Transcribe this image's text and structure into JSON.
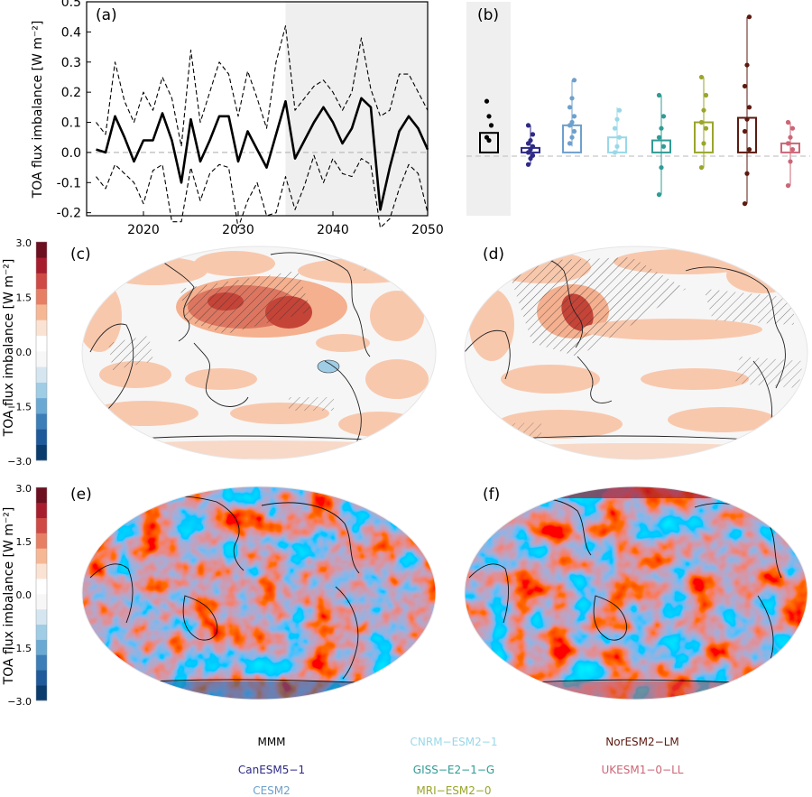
{
  "figure": {
    "ylabel": "TOA flux imbalance [W m⁻²]",
    "panel_labels": [
      "(a)",
      "(b)",
      "(c)",
      "(d)",
      "(e)",
      "(f)"
    ]
  },
  "chart_data": [
    {
      "id": "a",
      "type": "line",
      "title": "(a)",
      "xlabel": "",
      "ylabel": "TOA flux imbalance [W m⁻²]",
      "xlim": [
        2014,
        2050
      ],
      "ylim": [
        -0.21,
        0.5
      ],
      "xticks": [
        2020,
        2030,
        2040,
        2050
      ],
      "yticks": [
        -0.2,
        -0.1,
        0.0,
        0.1,
        0.2,
        0.3,
        0.4,
        0.5
      ],
      "shaded_x_range": [
        2035,
        2050
      ],
      "x": [
        2015,
        2016,
        2017,
        2018,
        2019,
        2020,
        2021,
        2022,
        2023,
        2024,
        2025,
        2026,
        2027,
        2028,
        2029,
        2030,
        2031,
        2032,
        2033,
        2034,
        2035,
        2036,
        2037,
        2038,
        2039,
        2040,
        2041,
        2042,
        2043,
        2044,
        2045,
        2046,
        2047,
        2048,
        2049,
        2050
      ],
      "series": [
        {
          "name": "mean",
          "style": "solid",
          "values": [
            0.01,
            0.0,
            0.12,
            0.05,
            -0.03,
            0.04,
            0.04,
            0.13,
            0.04,
            -0.1,
            0.11,
            -0.03,
            0.04,
            0.12,
            0.12,
            -0.03,
            0.07,
            0.01,
            -0.05,
            0.06,
            0.17,
            -0.02,
            0.04,
            0.1,
            0.15,
            0.1,
            0.03,
            0.08,
            0.18,
            0.15,
            -0.19,
            -0.05,
            0.07,
            0.12,
            0.08,
            0.01
          ]
        },
        {
          "name": "upper",
          "style": "dashed",
          "values": [
            0.1,
            0.06,
            0.3,
            0.17,
            0.1,
            0.2,
            0.14,
            0.25,
            0.18,
            0.02,
            0.34,
            0.1,
            0.2,
            0.3,
            0.26,
            0.12,
            0.27,
            0.18,
            0.08,
            0.3,
            0.42,
            0.14,
            0.18,
            0.22,
            0.24,
            0.2,
            0.14,
            0.2,
            0.38,
            0.21,
            0.12,
            0.14,
            0.26,
            0.26,
            0.2,
            0.14
          ]
        },
        {
          "name": "lower",
          "style": "dashed",
          "values": [
            -0.08,
            -0.12,
            -0.04,
            -0.07,
            -0.1,
            -0.17,
            -0.06,
            -0.04,
            -0.23,
            -0.23,
            -0.05,
            -0.16,
            -0.07,
            -0.04,
            -0.05,
            -0.25,
            -0.16,
            -0.1,
            -0.21,
            -0.2,
            -0.08,
            -0.19,
            -0.11,
            -0.01,
            -0.1,
            -0.02,
            -0.07,
            -0.08,
            -0.02,
            -0.04,
            -0.25,
            -0.22,
            -0.12,
            -0.04,
            -0.07,
            -0.2
          ]
        }
      ]
    },
    {
      "id": "b",
      "type": "bar",
      "title": "(b)",
      "ylim": [
        -0.21,
        0.5
      ],
      "categories": [
        "MMM",
        "CanESM5-1",
        "CESM2",
        "CNRM-ESM2-1",
        "GISS-E2-1-G",
        "MRI-ESM2-0",
        "NorESM2-LM",
        "UKESM1-0-LL"
      ],
      "values": [
        0.065,
        0.015,
        0.09,
        0.05,
        0.04,
        0.1,
        0.115,
        0.03
      ],
      "colors": [
        "#000000",
        "#2e2a86",
        "#6ea0cc",
        "#99d8e8",
        "#2f9c95",
        "#9aa52b",
        "#5c1a10",
        "#cc6677"
      ],
      "whiskers": [
        [
          null,
          null
        ],
        [
          -0.04,
          0.09
        ],
        [
          0.02,
          0.24
        ],
        [
          0.0,
          0.15
        ],
        [
          -0.14,
          0.19
        ],
        [
          -0.05,
          0.25
        ],
        [
          -0.17,
          0.45
        ],
        [
          -0.11,
          0.1
        ]
      ],
      "points": [
        [
          0.17,
          0.12,
          0.09,
          0.05,
          0.04
        ],
        [
          -0.04,
          -0.02,
          -0.01,
          0.0,
          0.01,
          0.02,
          0.03,
          0.04,
          0.06,
          0.09
        ],
        [
          0.03,
          0.05,
          0.07,
          0.09,
          0.1,
          0.12,
          0.15,
          0.18,
          0.24
        ],
        [
          0.0,
          0.02,
          0.05,
          0.08,
          0.11,
          0.14
        ],
        [
          -0.14,
          -0.05,
          0.02,
          0.05,
          0.08,
          0.12,
          0.19
        ],
        [
          -0.05,
          0.03,
          0.08,
          0.1,
          0.14,
          0.19,
          0.25
        ],
        [
          -0.17,
          -0.07,
          0.01,
          0.07,
          0.11,
          0.15,
          0.22,
          0.29,
          0.45
        ],
        [
          -0.11,
          -0.03,
          0.01,
          0.03,
          0.05,
          0.08,
          0.1
        ]
      ]
    },
    {
      "id": "c",
      "type": "heatmap",
      "title": "(c)",
      "colorbar": {
        "label": "TOA flux imbalance [W m⁻²]",
        "ticks": [
          "3.0",
          "1.5",
          "0.0",
          "−1.5",
          "−3.0"
        ],
        "range": [
          -3.0,
          3.0
        ]
      }
    },
    {
      "id": "d",
      "type": "heatmap",
      "title": "(d)",
      "colorbar": {
        "label": "TOA flux imbalance [W m⁻²]",
        "ticks": [
          "3.0",
          "1.5",
          "0.0",
          "−1.5",
          "−3.0"
        ],
        "range": [
          -3.0,
          3.0
        ]
      }
    },
    {
      "id": "e",
      "type": "heatmap",
      "title": "(e)",
      "colorbar": {
        "label": "TOA flux imbalance [W m⁻²]",
        "ticks": [
          "3.0",
          "1.5",
          "0.0",
          "−1.5",
          "−3.0"
        ],
        "range": [
          -3.0,
          3.0
        ]
      }
    },
    {
      "id": "f",
      "type": "heatmap",
      "title": "(f)",
      "colorbar": {
        "label": "TOA flux imbalance [W m⁻²]",
        "ticks": [
          "3.0",
          "1.5",
          "0.0",
          "−1.5",
          "−3.0"
        ],
        "range": [
          -3.0,
          3.0
        ]
      }
    }
  ],
  "colorbar_colors": [
    "#0b3c6e",
    "#1f5a9a",
    "#3b7eb8",
    "#6aa9d4",
    "#9fcde6",
    "#d6e6f0",
    "#f7f7f7",
    "#ffffff",
    "#fbe3d3",
    "#f6b894",
    "#e67f64",
    "#cf4a45",
    "#a81d2d",
    "#6d0f1f"
  ],
  "legend": [
    {
      "label": "MMM",
      "color": "#000000"
    },
    {
      "label": "CanESM5−1",
      "color": "#2e2a86"
    },
    {
      "label": "CESM2",
      "color": "#6ea0cc"
    },
    {
      "label": "CNRM−ESM2−1",
      "color": "#99d8e8"
    },
    {
      "label": "GISS−E2−1−G",
      "color": "#2f9c95"
    },
    {
      "label": "MRI−ESM2−0",
      "color": "#9aa52b"
    },
    {
      "label": "NorESM2−LM",
      "color": "#5c1a10"
    },
    {
      "label": "UKESM1−0−LL",
      "color": "#cc6677"
    }
  ]
}
